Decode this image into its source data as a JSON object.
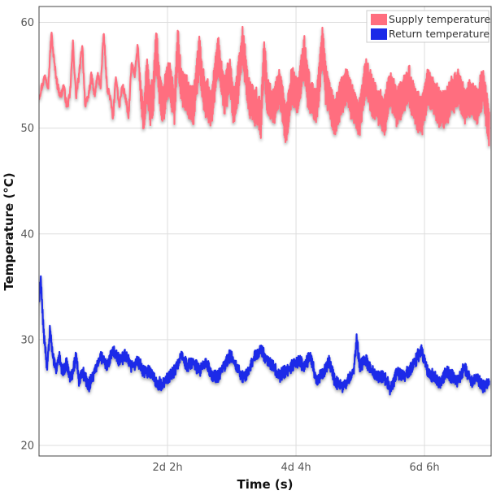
{
  "chart_data": {
    "type": "line",
    "xlabel": "Time (s)",
    "ylabel": "Temperature (°C)",
    "x_unit": "days",
    "xlim": [
      0,
      7.33
    ],
    "ylim": [
      19,
      61.5
    ],
    "x_ticks": [
      {
        "value": 2.0833,
        "label": "2d 2h"
      },
      {
        "value": 4.1667,
        "label": "4d 4h"
      },
      {
        "value": 6.25,
        "label": "6d 6h"
      }
    ],
    "y_ticks": [
      {
        "value": 20,
        "label": "20"
      },
      {
        "value": 30,
        "label": "30"
      },
      {
        "value": 40,
        "label": "40"
      },
      {
        "value": 50,
        "label": "50"
      },
      {
        "value": 60,
        "label": "60"
      }
    ],
    "grid": true,
    "legend_position": "top-right",
    "series": [
      {
        "name": "Supply temperature",
        "color": "#ff6e7f",
        "x": [
          0,
          0.1,
          0.15,
          0.2,
          0.25,
          0.3,
          0.35,
          0.4,
          0.45,
          0.5,
          0.55,
          0.6,
          0.65,
          0.7,
          0.75,
          0.8,
          0.85,
          0.9,
          0.95,
          1.0,
          1.05,
          1.1,
          1.15,
          1.2,
          1.25,
          1.3,
          1.35,
          1.4,
          1.45,
          1.5,
          1.55,
          1.6,
          1.65,
          1.7,
          1.75,
          1.8,
          1.85,
          1.9,
          1.95,
          2.0,
          2.1,
          2.2,
          2.25,
          2.3,
          2.4,
          2.5,
          2.6,
          2.65,
          2.7,
          2.8,
          2.9,
          3.0,
          3.1,
          3.15,
          3.2,
          3.3,
          3.4,
          3.5,
          3.6,
          3.65,
          3.7,
          3.8,
          3.9,
          4.0,
          4.1,
          4.2,
          4.3,
          4.35,
          4.4,
          4.5,
          4.6,
          4.65,
          4.7,
          4.8,
          4.9,
          5.0,
          5.1,
          5.2,
          5.3,
          5.4,
          5.5,
          5.6,
          5.7,
          5.8,
          5.9,
          6.0,
          6.1,
          6.2,
          6.3,
          6.4,
          6.5,
          6.6,
          6.7,
          6.8,
          6.9,
          7.0,
          7.1,
          7.2,
          7.3
        ],
        "y": [
          53,
          55,
          54,
          59,
          56,
          54,
          53,
          54,
          52,
          53,
          58,
          53,
          55,
          58,
          52,
          53,
          55,
          53,
          55,
          54,
          59,
          54,
          53,
          51,
          55,
          52,
          54,
          53,
          51,
          56,
          55,
          58,
          53,
          51,
          55,
          52,
          53,
          58,
          54,
          52,
          55,
          52,
          58,
          54,
          53,
          52,
          57,
          54,
          53,
          52,
          57,
          53,
          55,
          52,
          53,
          58,
          53,
          52,
          51,
          57,
          53,
          52,
          54,
          50,
          54,
          53,
          57,
          54,
          53,
          52,
          58,
          54,
          53,
          51,
          53,
          54,
          52,
          51,
          55,
          53,
          52,
          51,
          54,
          52,
          53,
          54,
          52,
          51,
          54,
          53,
          52,
          52,
          53,
          54,
          52,
          53,
          52,
          54,
          50
        ],
        "band_half_width": [
          0,
          0,
          0,
          0,
          0,
          0,
          0,
          0,
          0,
          0,
          0,
          0,
          0,
          0,
          0,
          0,
          0,
          0,
          0,
          0,
          0,
          0,
          0,
          0,
          0,
          0,
          0,
          0,
          0,
          0,
          0,
          0,
          0.8,
          1.5,
          1.7,
          1.8,
          1.8,
          1.8,
          1.8,
          1.8,
          1.8,
          1.8,
          1.8,
          1.8,
          1.8,
          1.8,
          1.8,
          1.8,
          1.8,
          1.8,
          1.8,
          1.8,
          1.8,
          1.8,
          1.8,
          1.8,
          1.8,
          1.8,
          1.8,
          1.8,
          1.8,
          1.8,
          1.8,
          1.8,
          1.8,
          1.8,
          1.8,
          1.8,
          1.8,
          1.8,
          1.8,
          1.8,
          1.8,
          1.8,
          1.8,
          1.8,
          1.8,
          1.8,
          1.8,
          1.8,
          1.8,
          1.8,
          1.8,
          1.8,
          1.8,
          1.8,
          1.8,
          1.8,
          1.8,
          1.8,
          1.8,
          1.8,
          1.8,
          1.8,
          1.8,
          1.8,
          1.8,
          1.8,
          1.8
        ]
      },
      {
        "name": "Return temperature",
        "color": "#1a2ae8",
        "x": [
          0,
          0.03,
          0.06,
          0.1,
          0.13,
          0.18,
          0.22,
          0.28,
          0.32,
          0.38,
          0.45,
          0.5,
          0.55,
          0.6,
          0.65,
          0.7,
          0.75,
          0.8,
          0.9,
          1.0,
          1.1,
          1.2,
          1.3,
          1.4,
          1.5,
          1.6,
          1.7,
          1.8,
          1.9,
          2.0,
          2.1,
          2.2,
          2.3,
          2.4,
          2.5,
          2.6,
          2.7,
          2.8,
          2.9,
          3.0,
          3.1,
          3.2,
          3.3,
          3.4,
          3.5,
          3.6,
          3.7,
          3.8,
          3.9,
          4.0,
          4.1,
          4.2,
          4.3,
          4.4,
          4.5,
          4.6,
          4.7,
          4.8,
          4.9,
          5.0,
          5.1,
          5.15,
          5.2,
          5.3,
          5.4,
          5.5,
          5.6,
          5.7,
          5.8,
          5.9,
          6.0,
          6.1,
          6.2,
          6.3,
          6.4,
          6.5,
          6.6,
          6.7,
          6.8,
          6.9,
          7.0,
          7.1,
          7.2,
          7.3
        ],
        "y": [
          34,
          35.5,
          32,
          29,
          27.5,
          31,
          28.5,
          27,
          28.5,
          27,
          27.8,
          26.5,
          27,
          28.5,
          26,
          27,
          26.5,
          25.5,
          27,
          28.5,
          27.5,
          29,
          28,
          28.5,
          27.5,
          28,
          27,
          27,
          26,
          25.8,
          26.5,
          27,
          28.5,
          27.5,
          28,
          27,
          28,
          26.5,
          26.5,
          27.5,
          28.5,
          27.5,
          26.5,
          27,
          28.5,
          29,
          28,
          27.5,
          26.5,
          27,
          27.5,
          28,
          27.5,
          28.5,
          26,
          26.8,
          28,
          26,
          25.5,
          26,
          27,
          30,
          27.5,
          28,
          27,
          26.5,
          26.5,
          25.2,
          27,
          26.5,
          27,
          28,
          29,
          27,
          26.5,
          26,
          27,
          26.5,
          26,
          27.5,
          26,
          26.5,
          25.5,
          26
        ],
        "band_half_width": [
          0.4,
          0.4,
          0.4,
          0.4,
          0.4,
          0.4,
          0.4,
          0.4,
          0.4,
          0.4,
          0.4,
          0.4,
          0.4,
          0.4,
          0.4,
          0.4,
          0.4,
          0.4,
          0.4,
          0.4,
          0.4,
          0.4,
          0.4,
          0.4,
          0.4,
          0.4,
          0.4,
          0.4,
          0.4,
          0.4,
          0.4,
          0.4,
          0.4,
          0.4,
          0.4,
          0.4,
          0.4,
          0.4,
          0.4,
          0.4,
          0.4,
          0.4,
          0.4,
          0.4,
          0.4,
          0.4,
          0.4,
          0.4,
          0.4,
          0.4,
          0.4,
          0.4,
          0.4,
          0.4,
          0.4,
          0.4,
          0.4,
          0.4,
          0.4,
          0.4,
          0.4,
          0.4,
          0.4,
          0.4,
          0.4,
          0.4,
          0.4,
          0.4,
          0.4,
          0.4,
          0.4,
          0.4,
          0.4,
          0.4,
          0.4,
          0.4,
          0.4,
          0.4,
          0.4,
          0.4,
          0.4,
          0.4,
          0.4,
          0.4
        ]
      }
    ]
  }
}
